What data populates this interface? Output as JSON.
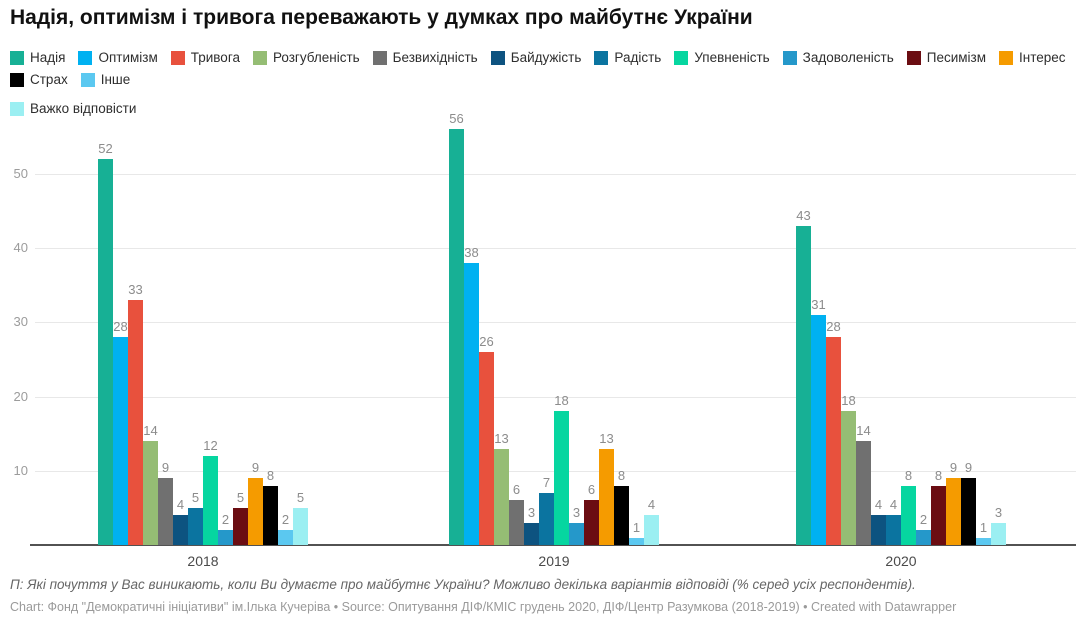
{
  "title": "Надія, оптимізм і тривога переважають у думках про майбутнє України",
  "footer": {
    "question": "П: Які почуття у Вас виникають, коли Ви думаєте про майбутнє України? Можливо декілька варіантів відповіді (% серед усіх респондентів).",
    "credits": "Chart: Фонд \"Демократичні ініціативи\" ім.Ілька Кучеріва • Source: Опитування ДІФ/КМІС грудень 2020, ДІФ/Центр Разумкова (2018-2019) • Created with Datawrapper"
  },
  "chart_data": {
    "type": "bar",
    "title": "Надія, оптимізм і тривога переважають у думках про майбутнє України",
    "categories": [
      "2018",
      "2019",
      "2020"
    ],
    "series": [
      {
        "name": "Надія",
        "color": "#17b095",
        "values": [
          52,
          56,
          43
        ]
      },
      {
        "name": "Оптимізм",
        "color": "#00b1f1",
        "values": [
          28,
          38,
          31
        ]
      },
      {
        "name": "Тривога",
        "color": "#e8513d",
        "values": [
          33,
          26,
          28
        ]
      },
      {
        "name": "Розгубленість",
        "color": "#95bd74",
        "values": [
          14,
          13,
          18
        ]
      },
      {
        "name": "Безвихідність",
        "color": "#707070",
        "values": [
          9,
          6,
          14
        ]
      },
      {
        "name": "Байдужість",
        "color": "#0d5380",
        "values": [
          4,
          3,
          4
        ]
      },
      {
        "name": "Радість",
        "color": "#0b74a0",
        "values": [
          5,
          7,
          4
        ]
      },
      {
        "name": "Упевненість",
        "color": "#06d6a0",
        "values": [
          12,
          18,
          8
        ]
      },
      {
        "name": "Задоволеність",
        "color": "#2598ca",
        "values": [
          2,
          3,
          2
        ]
      },
      {
        "name": "Песимізм",
        "color": "#6b0d12",
        "values": [
          5,
          6,
          8
        ]
      },
      {
        "name": "Інтерес",
        "color": "#f59b00",
        "values": [
          9,
          13,
          9
        ]
      },
      {
        "name": "Страх",
        "color": "#000000",
        "values": [
          8,
          8,
          9
        ]
      },
      {
        "name": "Інше",
        "color": "#5bc8f0",
        "values": [
          2,
          1,
          1
        ]
      },
      {
        "name": "Важко відповісти",
        "color": "#9beff2",
        "values": [
          5,
          4,
          3
        ]
      }
    ],
    "xlabel": "",
    "ylabel": "",
    "ylim": [
      0,
      58
    ],
    "yticks": [
      10,
      20,
      30,
      40,
      50
    ],
    "grid": true,
    "legend_position": "top",
    "value_labels": true
  }
}
